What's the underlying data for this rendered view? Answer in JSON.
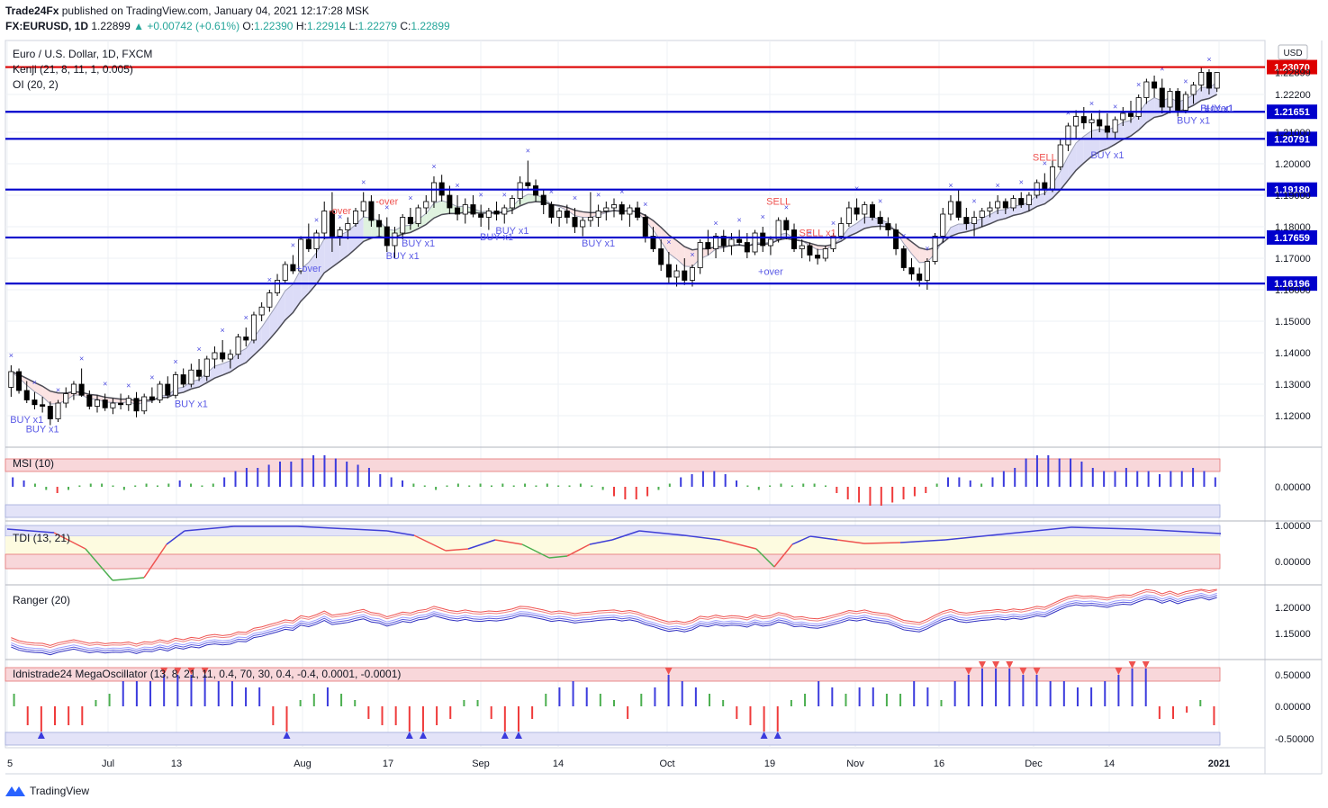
{
  "header": {
    "publisher": "Trade24Fx",
    "published_text": "published on TradingView.com, January 04, 2021 12:17:28 MSK",
    "symbol": "FX:EURUSD, 1D",
    "last": "1.22899",
    "change": "+0.00742 (+0.61%)",
    "o_label": "O:",
    "o": "1.22390",
    "h_label": "H:",
    "h": "1.22914",
    "l_label": "L:",
    "l": "1.22279",
    "c_label": "C:",
    "c": "1.22899"
  },
  "legend": {
    "instrument": "Euro / U.S. Dollar, 1D, FXCM",
    "kenji": "Kenji (21, 8, 11, 1, 0.005)",
    "oi": "OI (20, 2)",
    "msi": "MSI (10)",
    "tdi": "TDI (13, 21)",
    "ranger": "Ranger (20)",
    "mega": "Idnistrade24 MegaOscillator (13, 8, 21, 11, 0.4, 70, 30, 0.4, -0.4, 0.0001, -0.0001)"
  },
  "footer": {
    "brand": "TradingView"
  },
  "colors": {
    "up": "#26a69a",
    "down": "#ef5350",
    "level": "#0000cc",
    "resistance": "#dd0000",
    "blue_hist": "#3b3bdd",
    "green_hist": "#4caf50",
    "red_hist": "#ef3b3b"
  },
  "chart_data": {
    "type": "candlestick",
    "currency": "USD",
    "price_axis_ticks": [
      "1.22200",
      "1.21000",
      "1.20000",
      "1.19000",
      "1.18000",
      "1.17000",
      "1.16000",
      "1.15000",
      "1.14000",
      "1.13000",
      "1.12000"
    ],
    "current_price": "1.22899",
    "horizontal_levels": [
      {
        "value": 1.2307,
        "label": "1.23070",
        "color": "#dd0000"
      },
      {
        "value": 1.21651,
        "label": "1.21651",
        "color": "#0000cc"
      },
      {
        "value": 1.20791,
        "label": "1.20791",
        "color": "#0000cc"
      },
      {
        "value": 1.1918,
        "label": "1.19180",
        "color": "#0000cc"
      },
      {
        "value": 1.17659,
        "label": "1.17659",
        "color": "#0000cc"
      },
      {
        "value": 1.16196,
        "label": "1.16196",
        "color": "#0000cc"
      }
    ],
    "x_axis_labels": [
      "5",
      "Jul",
      "13",
      "Aug",
      "17",
      "Sep",
      "14",
      "Oct",
      "19",
      "Nov",
      "16",
      "Dec",
      "14",
      "2021"
    ],
    "signals": [
      {
        "text": "BUY x1",
        "bar": 2
      },
      {
        "text": "BUY x1",
        "bar": 4
      },
      {
        "text": "BUY x1",
        "bar": 23
      },
      {
        "text": "+over",
        "bar": 38
      },
      {
        "text": "-over",
        "bar": 42
      },
      {
        "text": "-over",
        "bar": 48
      },
      {
        "text": "BUY x1",
        "bar": 50
      },
      {
        "text": "BUY x1",
        "bar": 52
      },
      {
        "text": "BUY x1",
        "bar": 62
      },
      {
        "text": "BUY x1",
        "bar": 64
      },
      {
        "text": "BUY x1",
        "bar": 75
      },
      {
        "text": "SELL",
        "bar": 98
      },
      {
        "text": "SELL x1",
        "bar": 103
      },
      {
        "text": "+over",
        "bar": 97
      },
      {
        "text": "SELL",
        "bar": 132
      },
      {
        "text": "BUY x1",
        "bar": 140
      },
      {
        "text": "BUY x1",
        "bar": 151
      },
      {
        "text": "BUY x1",
        "bar": 158
      },
      {
        "text": "+over",
        "bar": 156
      },
      {
        "text": "BUY x1",
        "bar": 166
      },
      {
        "text": "BUY x1",
        "bar": 177
      },
      {
        "text": "BUY x1",
        "bar": 180
      },
      {
        "text": "BUY x1",
        "bar": 186
      }
    ],
    "ohlc": [
      [
        1.129,
        1.136,
        1.126,
        1.134
      ],
      [
        1.134,
        1.135,
        1.127,
        1.128
      ],
      [
        1.128,
        1.131,
        1.124,
        1.125
      ],
      [
        1.125,
        1.1275,
        1.122,
        1.1235
      ],
      [
        1.1235,
        1.126,
        1.121,
        1.123
      ],
      [
        1.123,
        1.1245,
        1.117,
        1.119
      ],
      [
        1.119,
        1.125,
        1.118,
        1.124
      ],
      [
        1.124,
        1.129,
        1.1225,
        1.127
      ],
      [
        1.127,
        1.131,
        1.125,
        1.13
      ],
      [
        1.13,
        1.135,
        1.126,
        1.1265
      ],
      [
        1.1265,
        1.128,
        1.122,
        1.123
      ],
      [
        1.123,
        1.1265,
        1.121,
        1.125
      ],
      [
        1.125,
        1.127,
        1.1215,
        1.1225
      ],
      [
        1.1225,
        1.1255,
        1.1205,
        1.124
      ],
      [
        1.124,
        1.127,
        1.122,
        1.1235
      ],
      [
        1.1235,
        1.1265,
        1.1215,
        1.1255
      ],
      [
        1.1255,
        1.1275,
        1.1195,
        1.1215
      ],
      [
        1.1215,
        1.127,
        1.1205,
        1.126
      ],
      [
        1.126,
        1.129,
        1.124,
        1.125
      ],
      [
        1.125,
        1.131,
        1.124,
        1.13
      ],
      [
        1.13,
        1.1325,
        1.1255,
        1.1265
      ],
      [
        1.1265,
        1.134,
        1.1255,
        1.133
      ],
      [
        1.133,
        1.135,
        1.129,
        1.13
      ],
      [
        1.13,
        1.1365,
        1.129,
        1.1345
      ],
      [
        1.1345,
        1.138,
        1.131,
        1.1325
      ],
      [
        1.1325,
        1.139,
        1.131,
        1.138
      ],
      [
        1.138,
        1.142,
        1.135,
        1.14
      ],
      [
        1.14,
        1.144,
        1.137,
        1.138
      ],
      [
        1.138,
        1.141,
        1.135,
        1.1395
      ],
      [
        1.1395,
        1.146,
        1.138,
        1.145
      ],
      [
        1.145,
        1.148,
        1.142,
        1.144
      ],
      [
        1.144,
        1.153,
        1.143,
        1.152
      ],
      [
        1.152,
        1.156,
        1.15,
        1.1545
      ],
      [
        1.1545,
        1.16,
        1.153,
        1.159
      ],
      [
        1.159,
        1.165,
        1.158,
        1.163
      ],
      [
        1.163,
        1.169,
        1.162,
        1.168
      ],
      [
        1.168,
        1.171,
        1.165,
        1.166
      ],
      [
        1.166,
        1.177,
        1.165,
        1.176
      ],
      [
        1.176,
        1.181,
        1.172,
        1.173
      ],
      [
        1.173,
        1.179,
        1.17,
        1.178
      ],
      [
        1.178,
        1.188,
        1.176,
        1.185
      ],
      [
        1.185,
        1.191,
        1.172,
        1.177
      ],
      [
        1.177,
        1.18,
        1.174,
        1.179
      ],
      [
        1.179,
        1.183,
        1.176,
        1.181
      ],
      [
        1.181,
        1.186,
        1.18,
        1.185
      ],
      [
        1.185,
        1.191,
        1.183,
        1.188
      ],
      [
        1.188,
        1.19,
        1.18,
        1.182
      ],
      [
        1.182,
        1.184,
        1.177,
        1.18
      ],
      [
        1.18,
        1.183,
        1.172,
        1.174
      ],
      [
        1.174,
        1.18,
        1.17,
        1.178
      ],
      [
        1.178,
        1.184,
        1.176,
        1.183
      ],
      [
        1.183,
        1.186,
        1.179,
        1.181
      ],
      [
        1.181,
        1.187,
        1.18,
        1.186
      ],
      [
        1.186,
        1.19,
        1.184,
        1.188
      ],
      [
        1.188,
        1.196,
        1.186,
        1.194
      ],
      [
        1.194,
        1.1965,
        1.188,
        1.19
      ],
      [
        1.19,
        1.193,
        1.184,
        1.186
      ],
      [
        1.186,
        1.19,
        1.182,
        1.184
      ],
      [
        1.184,
        1.189,
        1.181,
        1.187
      ],
      [
        1.187,
        1.19,
        1.183,
        1.184
      ],
      [
        1.184,
        1.187,
        1.18,
        1.183
      ],
      [
        1.183,
        1.186,
        1.179,
        1.185
      ],
      [
        1.185,
        1.188,
        1.182,
        1.184
      ],
      [
        1.184,
        1.187,
        1.181,
        1.186
      ],
      [
        1.186,
        1.19,
        1.184,
        1.189
      ],
      [
        1.189,
        1.196,
        1.187,
        1.194
      ],
      [
        1.194,
        1.201,
        1.192,
        1.193
      ],
      [
        1.193,
        1.195,
        1.188,
        1.19
      ],
      [
        1.19,
        1.192,
        1.184,
        1.187
      ],
      [
        1.187,
        1.188,
        1.181,
        1.183
      ],
      [
        1.183,
        1.186,
        1.18,
        1.185
      ],
      [
        1.185,
        1.187,
        1.181,
        1.183
      ],
      [
        1.183,
        1.186,
        1.178,
        1.18
      ],
      [
        1.18,
        1.183,
        1.177,
        1.182
      ],
      [
        1.182,
        1.191,
        1.18,
        1.183
      ],
      [
        1.183,
        1.187,
        1.18,
        1.185
      ],
      [
        1.185,
        1.188,
        1.182,
        1.186
      ],
      [
        1.186,
        1.189,
        1.183,
        1.187
      ],
      [
        1.187,
        1.188,
        1.182,
        1.184
      ],
      [
        1.184,
        1.187,
        1.18,
        1.186
      ],
      [
        1.186,
        1.188,
        1.182,
        1.183
      ],
      [
        1.183,
        1.184,
        1.175,
        1.177
      ],
      [
        1.177,
        1.18,
        1.172,
        1.173
      ],
      [
        1.173,
        1.176,
        1.166,
        1.168
      ],
      [
        1.168,
        1.172,
        1.162,
        1.164
      ],
      [
        1.164,
        1.168,
        1.161,
        1.166
      ],
      [
        1.166,
        1.17,
        1.1615,
        1.163
      ],
      [
        1.163,
        1.168,
        1.161,
        1.167
      ],
      [
        1.167,
        1.176,
        1.165,
        1.175
      ],
      [
        1.175,
        1.179,
        1.171,
        1.173
      ],
      [
        1.173,
        1.178,
        1.17,
        1.177
      ],
      [
        1.177,
        1.179,
        1.172,
        1.174
      ],
      [
        1.174,
        1.178,
        1.171,
        1.176
      ],
      [
        1.176,
        1.179,
        1.174,
        1.175
      ],
      [
        1.175,
        1.178,
        1.17,
        1.172
      ],
      [
        1.172,
        1.179,
        1.171,
        1.178
      ],
      [
        1.178,
        1.18,
        1.172,
        1.174
      ],
      [
        1.174,
        1.177,
        1.171,
        1.176
      ],
      [
        1.176,
        1.183,
        1.175,
        1.182
      ],
      [
        1.182,
        1.183,
        1.176,
        1.179
      ],
      [
        1.179,
        1.181,
        1.172,
        1.173
      ],
      [
        1.173,
        1.176,
        1.17,
        1.174
      ],
      [
        1.174,
        1.175,
        1.169,
        1.171
      ],
      [
        1.171,
        1.173,
        1.168,
        1.17
      ],
      [
        1.17,
        1.174,
        1.169,
        1.173
      ],
      [
        1.173,
        1.178,
        1.172,
        1.177
      ],
      [
        1.177,
        1.183,
        1.176,
        1.181
      ],
      [
        1.181,
        1.188,
        1.18,
        1.186
      ],
      [
        1.186,
        1.189,
        1.182,
        1.184
      ],
      [
        1.184,
        1.188,
        1.181,
        1.187
      ],
      [
        1.187,
        1.188,
        1.182,
        1.183
      ],
      [
        1.183,
        1.185,
        1.179,
        1.181
      ],
      [
        1.181,
        1.183,
        1.177,
        1.179
      ],
      [
        1.179,
        1.181,
        1.171,
        1.173
      ],
      [
        1.173,
        1.174,
        1.166,
        1.167
      ],
      [
        1.167,
        1.17,
        1.163,
        1.165
      ],
      [
        1.165,
        1.167,
        1.161,
        1.163
      ],
      [
        1.163,
        1.17,
        1.16,
        1.169
      ],
      [
        1.169,
        1.178,
        1.168,
        1.177
      ],
      [
        1.177,
        1.186,
        1.175,
        1.184
      ],
      [
        1.184,
        1.19,
        1.182,
        1.188
      ],
      [
        1.188,
        1.192,
        1.182,
        1.183
      ],
      [
        1.183,
        1.186,
        1.179,
        1.181
      ],
      [
        1.181,
        1.185,
        1.177,
        1.183
      ],
      [
        1.183,
        1.186,
        1.18,
        1.185
      ],
      [
        1.185,
        1.188,
        1.183,
        1.186
      ],
      [
        1.186,
        1.19,
        1.184,
        1.188
      ],
      [
        1.188,
        1.189,
        1.184,
        1.186
      ],
      [
        1.186,
        1.19,
        1.185,
        1.189
      ],
      [
        1.189,
        1.191,
        1.186,
        1.187
      ],
      [
        1.187,
        1.191,
        1.185,
        1.19
      ],
      [
        1.19,
        1.195,
        1.189,
        1.194
      ],
      [
        1.194,
        1.197,
        1.19,
        1.192
      ],
      [
        1.192,
        1.201,
        1.191,
        1.199
      ],
      [
        1.199,
        1.208,
        1.198,
        1.206
      ],
      [
        1.206,
        1.213,
        1.204,
        1.212
      ],
      [
        1.212,
        1.217,
        1.208,
        1.215
      ],
      [
        1.215,
        1.218,
        1.211,
        1.213
      ],
      [
        1.213,
        1.216,
        1.208,
        1.214
      ],
      [
        1.214,
        1.217,
        1.21,
        1.212
      ],
      [
        1.212,
        1.216,
        1.208,
        1.21
      ],
      [
        1.21,
        1.215,
        1.208,
        1.214
      ],
      [
        1.214,
        1.218,
        1.212,
        1.216
      ],
      [
        1.216,
        1.22,
        1.213,
        1.215
      ],
      [
        1.215,
        1.222,
        1.214,
        1.221
      ],
      [
        1.221,
        1.227,
        1.219,
        1.226
      ],
      [
        1.226,
        1.228,
        1.221,
        1.224
      ],
      [
        1.224,
        1.227,
        1.216,
        1.218
      ],
      [
        1.218,
        1.224,
        1.216,
        1.223
      ],
      [
        1.223,
        1.224,
        1.215,
        1.217
      ],
      [
        1.217,
        1.223,
        1.216,
        1.222
      ],
      [
        1.222,
        1.226,
        1.219,
        1.225
      ],
      [
        1.225,
        1.231,
        1.223,
        1.229
      ],
      [
        1.229,
        1.23,
        1.222,
        1.224
      ],
      [
        1.224,
        1.2291,
        1.2228,
        1.229
      ]
    ],
    "msi_values": [
      0.3,
      0.2,
      0.1,
      -0.1,
      -0.2,
      -0.1,
      0.0,
      0.1,
      0.1,
      0.0,
      -0.1,
      0.0,
      0.1,
      0.0,
      0.1,
      0.2,
      0.1,
      0.0,
      0.1,
      0.3,
      0.5,
      0.6,
      0.6,
      0.7,
      0.8,
      0.8,
      0.9,
      1.0,
      1.0,
      0.9,
      0.8,
      0.7,
      0.6,
      0.4,
      0.3,
      0.2,
      0.1,
      0.0,
      -0.1,
      0.0,
      0.1,
      0.0,
      0.1,
      0.0,
      0.1,
      0.0,
      0.1,
      0.0,
      0.1,
      0.0,
      0.0,
      0.1,
      0.0,
      -0.1,
      -0.3,
      -0.4,
      -0.4,
      -0.3,
      -0.1,
      0.1,
      0.3,
      0.4,
      0.5,
      0.5,
      0.4,
      0.2,
      0.0,
      -0.1,
      0.0,
      0.1,
      0.0,
      0.1,
      0.1,
      0.0,
      -0.2,
      -0.4,
      -0.5,
      -0.6,
      -0.6,
      -0.5,
      -0.4,
      -0.3,
      -0.2,
      0.1,
      0.3,
      0.3,
      0.2,
      0.1,
      0.3,
      0.5,
      0.6,
      0.9,
      1.0,
      1.0,
      0.9,
      0.9,
      0.8,
      0.6,
      0.5,
      0.5,
      0.6,
      0.5,
      0.5,
      0.4,
      0.5,
      0.5,
      0.6,
      0.5,
      0.3
    ],
    "mega_values": [
      0.2,
      -0.3,
      -0.4,
      -0.3,
      -0.3,
      -0.3,
      0.1,
      0.2,
      0.4,
      0.4,
      0.4,
      0.5,
      0.5,
      0.5,
      0.5,
      0.4,
      0.4,
      0.3,
      0.3,
      -0.3,
      -0.4,
      0.1,
      0.2,
      0.3,
      0.2,
      0.1,
      -0.2,
      -0.3,
      -0.3,
      -0.4,
      -0.4,
      -0.3,
      -0.2,
      0.1,
      0.1,
      -0.2,
      -0.4,
      -0.4,
      -0.2,
      0.2,
      0.3,
      0.4,
      0.3,
      0.2,
      0.1,
      -0.2,
      0.2,
      0.3,
      0.5,
      0.4,
      0.3,
      0.2,
      0.1,
      -0.2,
      -0.3,
      -0.4,
      -0.4,
      0.1,
      0.2,
      0.4,
      0.3,
      0.2,
      0.3,
      0.3,
      0.2,
      0.2,
      0.4,
      0.3,
      0.1,
      0.4,
      0.5,
      0.6,
      0.6,
      0.6,
      0.5,
      0.5,
      0.4,
      0.4,
      0.3,
      0.3,
      0.4,
      0.5,
      0.6,
      0.6,
      -0.2,
      -0.2,
      -0.1,
      0.1,
      -0.3
    ]
  }
}
